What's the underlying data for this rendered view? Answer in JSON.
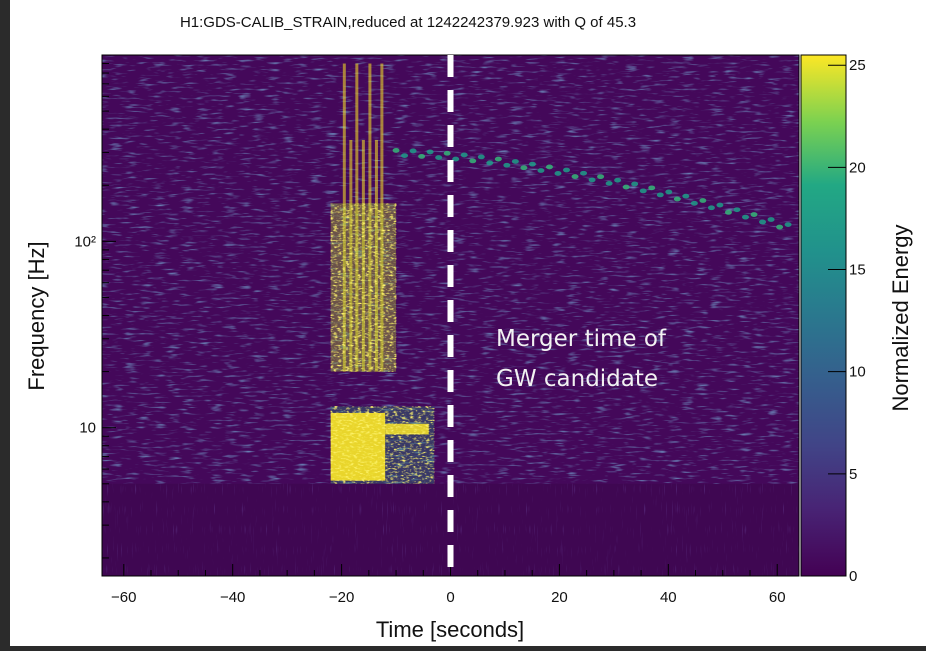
{
  "chart_data": {
    "type": "heatmap",
    "title": "H1:GDS-CALIB_STRAIN,reduced at 1242242379.923 with Q of 45.3",
    "xlabel": "Time [seconds]",
    "ylabel": "Frequency [Hz]",
    "xlim": [
      -64,
      64
    ],
    "x_ticks": [
      -60,
      -40,
      -20,
      0,
      20,
      40,
      60
    ],
    "x_tick_labels": [
      "−60",
      "−40",
      "−20",
      "0",
      "20",
      "40",
      "60"
    ],
    "y_scale": "log",
    "ylim": [
      1.6,
      1000
    ],
    "y_ticks": [
      10,
      100
    ],
    "y_tick_labels": [
      "10",
      "10²"
    ],
    "colorbar": {
      "label": "Normalized Energy",
      "range": [
        0,
        25.5
      ],
      "ticks": [
        0,
        5,
        10,
        15,
        20,
        25
      ],
      "tick_labels": [
        "0",
        "5",
        "10",
        "15",
        "20",
        "25"
      ],
      "colormap": "viridis"
    },
    "colors": {
      "low": "#440154",
      "mid": "#21918c",
      "high": "#fde725",
      "merger_line": "#ffffff"
    },
    "features": {
      "glitch_band": {
        "x_range": [
          -22,
          -3
        ],
        "freq_range": [
          5,
          13
        ],
        "energy": "high"
      },
      "glitch_vertical": {
        "x_range": [
          -20,
          -12
        ],
        "freq_range": [
          20,
          900
        ],
        "energy": "high"
      },
      "chirp_arc": {
        "x_range": [
          -10,
          62
        ],
        "freq_start": 300,
        "freq_end": 120,
        "energy": "medium"
      },
      "floor_frequency": 5
    },
    "annotation": {
      "line1": "Merger time of",
      "line2": "GW candidate",
      "x": 0
    },
    "merger_line_x": 0,
    "grid": false
  }
}
